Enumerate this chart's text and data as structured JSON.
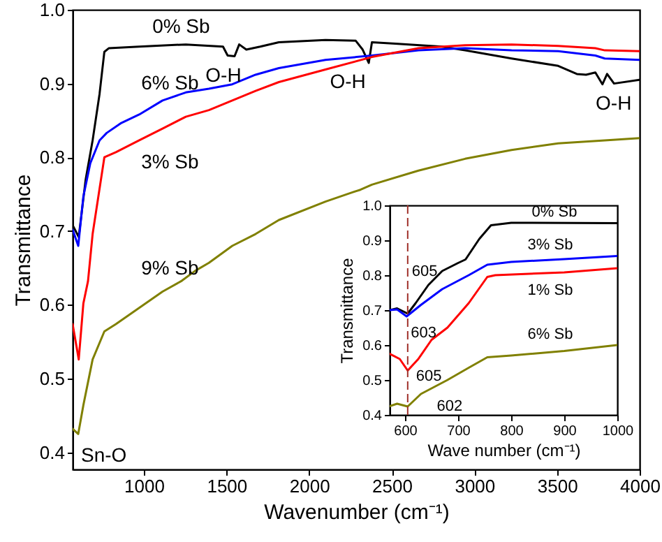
{
  "chart_data": [
    {
      "type": "line",
      "xlabel": "Wavenumber (cm⁻¹)",
      "ylabel": "Transmittance",
      "xlim": [
        569,
        4000
      ],
      "ylim": [
        0.377,
        1.0
      ],
      "xticks": [
        1000,
        1500,
        2000,
        2500,
        3000,
        3500,
        4000
      ],
      "yticks": [
        0.4,
        0.5,
        0.6,
        0.7,
        0.8,
        0.9,
        {
          "value": 1,
          "label": "1.0"
        }
      ],
      "grid": false,
      "series": [
        {
          "name": "0% Sb",
          "color": "#000000",
          "x": [
            569,
            606,
            648,
            690,
            732,
            761,
            789,
            972,
            1254,
            1479,
            1507,
            1549,
            1577,
            1620,
            1704,
            1817,
            2099,
            2282,
            2324,
            2361,
            2380,
            2521,
            2803,
            2944,
            3225,
            3507,
            3620,
            3676,
            3732,
            3775,
            3803,
            3845,
            4000
          ],
          "values": [
            0.708,
            0.692,
            0.77,
            0.823,
            0.886,
            0.943,
            0.948,
            0.95,
            0.953,
            0.95,
            0.938,
            0.937,
            0.953,
            0.946,
            0.95,
            0.956,
            0.959,
            0.958,
            0.946,
            0.928,
            0.956,
            0.954,
            0.95,
            0.945,
            0.934,
            0.924,
            0.913,
            0.912,
            0.915,
            0.899,
            0.913,
            0.9,
            0.905
          ]
        },
        {
          "name": "6% Sb",
          "color": "#0000ff",
          "x": [
            569,
            603,
            634,
            676,
            732,
            775,
            859,
            972,
            1113,
            1254,
            1394,
            1535,
            1676,
            1817,
            2099,
            2380,
            2662,
            2944,
            3225,
            3507,
            3732,
            3789,
            4000
          ],
          "values": [
            0.702,
            0.68,
            0.747,
            0.792,
            0.823,
            0.833,
            0.846,
            0.858,
            0.877,
            0.888,
            0.893,
            0.899,
            0.912,
            0.921,
            0.932,
            0.938,
            0.945,
            0.948,
            0.945,
            0.944,
            0.938,
            0.934,
            0.932
          ]
        },
        {
          "name": "3% Sb",
          "color": "#ff0000",
          "x": [
            569,
            606,
            634,
            662,
            690,
            761,
            831,
            972,
            1113,
            1254,
            1394,
            1535,
            1676,
            1817,
            2099,
            2380,
            2662,
            2944,
            3225,
            3507,
            3732,
            3789,
            4000
          ],
          "values": [
            0.574,
            0.526,
            0.602,
            0.632,
            0.696,
            0.8,
            0.807,
            0.823,
            0.839,
            0.855,
            0.864,
            0.877,
            0.89,
            0.902,
            0.919,
            0.936,
            0.948,
            0.952,
            0.953,
            0.951,
            0.948,
            0.945,
            0.944
          ]
        },
        {
          "name": "9% Sb",
          "color": "#808000",
          "x": [
            569,
            603,
            634,
            690,
            761,
            831,
            972,
            1113,
            1225,
            1310,
            1394,
            1535,
            1676,
            1817,
            2099,
            2268,
            2310,
            2380,
            2662,
            2944,
            3225,
            3507,
            3789,
            4000
          ],
          "values": [
            0.432,
            0.425,
            0.464,
            0.526,
            0.564,
            0.574,
            0.596,
            0.618,
            0.632,
            0.646,
            0.657,
            0.68,
            0.696,
            0.715,
            0.74,
            0.753,
            0.756,
            0.763,
            0.782,
            0.798,
            0.81,
            0.819,
            0.823,
            0.826
          ]
        }
      ],
      "annotations": [
        {
          "text": "O-H",
          "x": 1549,
          "y": 0.937
        },
        {
          "text": "O-H",
          "x": 2361,
          "y": 0.928
        },
        {
          "text": "O-H",
          "x": 3775,
          "y": 0.899
        },
        {
          "text": "Sn-O",
          "x": 603,
          "y": 0.425
        }
      ]
    },
    {
      "type": "line",
      "xlabel": "Wave number (cm⁻¹)",
      "ylabel": "Transmittance",
      "xlim": [
        571,
        1000
      ],
      "ylim": [
        0.4,
        1.0
      ],
      "xticks": [
        600,
        700,
        800,
        900,
        1000
      ],
      "yticks": [
        0.4,
        0.5,
        0.6,
        0.7,
        0.8,
        0.9,
        {
          "value": 1,
          "label": "1.0"
        }
      ],
      "grid": false,
      "series": [
        {
          "name": "0% Sb",
          "color": "#000000",
          "x": [
            571,
            585,
            605,
            620,
            644,
            670,
            700,
            714,
            740,
            762,
            800,
            1000
          ],
          "values": [
            0.7,
            0.705,
            0.69,
            0.72,
            0.772,
            0.812,
            0.835,
            0.845,
            0.904,
            0.943,
            0.95,
            0.949
          ]
        },
        {
          "name": "3% Sb",
          "color": "#0000ff",
          "x": [
            571,
            585,
            603,
            630,
            670,
            720,
            755,
            800,
            900,
            1000
          ],
          "values": [
            0.7,
            0.702,
            0.682,
            0.715,
            0.76,
            0.8,
            0.83,
            0.838,
            0.846,
            0.855
          ]
        },
        {
          "name": "1% Sb",
          "color": "#ff0000",
          "x": [
            571,
            590,
            605,
            625,
            650,
            680,
            720,
            755,
            770,
            900,
            1000
          ],
          "values": [
            0.575,
            0.56,
            0.527,
            0.56,
            0.615,
            0.65,
            0.72,
            0.795,
            0.8,
            0.808,
            0.82
          ]
        },
        {
          "name": "6% Sb",
          "color": "#808000",
          "x": [
            571,
            585,
            605,
            630,
            680,
            720,
            755,
            800,
            900,
            1000
          ],
          "values": [
            0.425,
            0.432,
            0.424,
            0.46,
            0.5,
            0.535,
            0.565,
            0.57,
            0.583,
            0.6
          ]
        }
      ],
      "ref_lines": [
        {
          "axis": "x",
          "value": 605,
          "color": "#a0302a",
          "line_style": "dashed"
        }
      ],
      "annotations": [
        {
          "text": "605",
          "x": 605,
          "y": 0.69
        },
        {
          "text": "603",
          "x": 603,
          "y": 0.682
        },
        {
          "text": "605",
          "x": 605,
          "y": 0.527
        },
        {
          "text": "602",
          "x": 602,
          "y": 0.424
        }
      ]
    }
  ]
}
